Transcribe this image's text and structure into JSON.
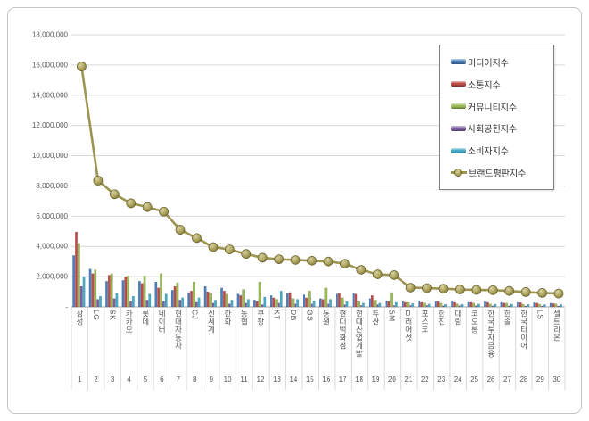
{
  "window": {
    "kind": "excel-style-chart-screenshot",
    "background": "#ffffff",
    "frame_border_color": "#c6c6c6"
  },
  "chart_data": {
    "type": "bar",
    "subtype": "clustered-bars-with-line-overlay",
    "title": "",
    "xlabel": "",
    "ylabel": "",
    "ylim": [
      0,
      18000000
    ],
    "ytick_step": 2000000,
    "zero_tick_label": "-",
    "grid": true,
    "gridline_color": "#d9d9d9",
    "axis_text_color": "#595959",
    "legend_position": "upper-right",
    "categories": [
      "삼성",
      "LG",
      "SK",
      "카카오",
      "롯데",
      "네이버",
      "현대자동차",
      "CJ",
      "신세계",
      "한화",
      "농협",
      "쿠팡",
      "KT",
      "DB",
      "GS",
      "동원",
      "현대백화점",
      "현대산업개발",
      "두산",
      "SM",
      "미래에셋",
      "포스코",
      "한진",
      "대림",
      "코오롱",
      "한국투자금융",
      "한솔",
      "한국타이어",
      "LS",
      "셀트리온"
    ],
    "ranks": [
      1,
      2,
      3,
      4,
      5,
      6,
      7,
      8,
      9,
      10,
      11,
      12,
      13,
      14,
      15,
      16,
      17,
      18,
      19,
      20,
      21,
      22,
      23,
      24,
      25,
      26,
      27,
      28,
      29,
      30
    ],
    "series": [
      {
        "name": "미디어지수",
        "type": "bar",
        "color": "#4A7EBB",
        "values": [
          3400000,
          2500000,
          1700000,
          1750000,
          1700000,
          1650000,
          1100000,
          950000,
          1350000,
          1250000,
          850000,
          450000,
          750000,
          900000,
          800000,
          550000,
          850000,
          900000,
          550000,
          400000,
          350000,
          400000,
          350000,
          400000,
          300000,
          350000,
          300000,
          300000,
          280000,
          250000
        ]
      },
      {
        "name": "소통지수",
        "type": "bar",
        "color": "#BE4B48",
        "values": [
          4950000,
          2200000,
          2100000,
          2000000,
          1550000,
          1250000,
          1350000,
          1050000,
          1000000,
          1050000,
          750000,
          350000,
          600000,
          950000,
          600000,
          500000,
          900000,
          850000,
          750000,
          350000,
          300000,
          300000,
          350000,
          300000,
          300000,
          300000,
          250000,
          280000,
          250000,
          220000
        ]
      },
      {
        "name": "커뮤니티지수",
        "type": "bar",
        "color": "#98B954",
        "values": [
          4200000,
          2450000,
          2200000,
          2050000,
          2050000,
          2200000,
          1600000,
          1650000,
          900000,
          850000,
          1150000,
          1650000,
          500000,
          550000,
          1050000,
          1250000,
          600000,
          350000,
          450000,
          950000,
          300000,
          250000,
          250000,
          200000,
          250000,
          200000,
          250000,
          180000,
          180000,
          200000
        ]
      },
      {
        "name": "사회공헌지수",
        "type": "bar",
        "color": "#7D60A0",
        "values": [
          1350000,
          500000,
          550000,
          350000,
          450000,
          350000,
          450000,
          300000,
          250000,
          200000,
          250000,
          150000,
          250000,
          200000,
          200000,
          200000,
          150000,
          100000,
          150000,
          100000,
          100000,
          100000,
          80000,
          80000,
          80000,
          70000,
          70000,
          60000,
          60000,
          60000
        ]
      },
      {
        "name": "소비자지수",
        "type": "bar",
        "color": "#45AAC5",
        "values": [
          2000000,
          700000,
          900000,
          700000,
          850000,
          850000,
          600000,
          600000,
          450000,
          450000,
          500000,
          650000,
          1050000,
          500000,
          400000,
          500000,
          350000,
          250000,
          250000,
          300000,
          220000,
          190000,
          170000,
          170000,
          190000,
          180000,
          180000,
          160000,
          150000,
          150000
        ]
      },
      {
        "name": "브랜드평판지수",
        "type": "line",
        "color": "#9C9450",
        "marker_fill": "#B0A75F",
        "marker_edge": "#6F6733",
        "values": [
          15900000,
          8350000,
          7450000,
          6850000,
          6600000,
          6300000,
          5100000,
          4550000,
          3950000,
          3800000,
          3500000,
          3250000,
          3150000,
          3100000,
          3050000,
          3000000,
          2850000,
          2450000,
          2150000,
          2100000,
          1270000,
          1240000,
          1200000,
          1150000,
          1120000,
          1100000,
          1050000,
          980000,
          920000,
          880000
        ]
      }
    ]
  }
}
